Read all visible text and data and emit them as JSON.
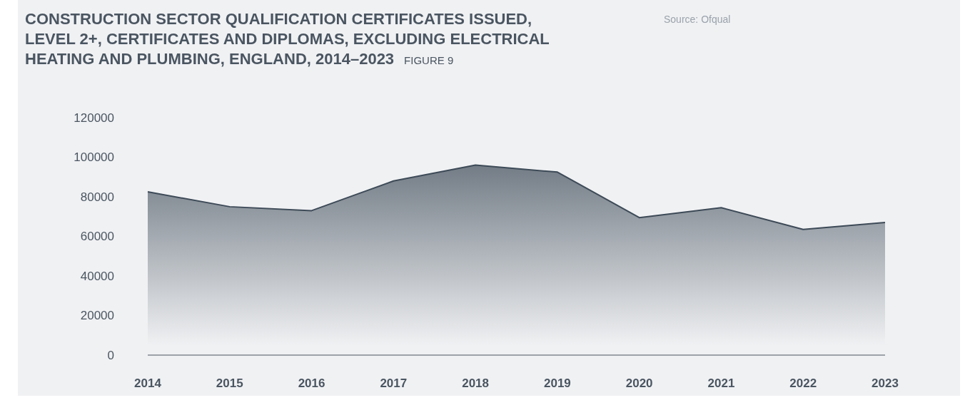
{
  "chart_data": {
    "type": "area",
    "title": "CONSTRUCTION SECTOR QUALIFICATION CERTIFICATES ISSUED, LEVEL 2+, CERTIFICATES AND DIPLOMAS, EXCLUDING ELECTRICAL HEATING AND PLUMBING, ENGLAND, 2014–2023",
    "subtitle": "FIGURE 9",
    "annotations": [
      "Source: Ofqual"
    ],
    "categories": [
      "2014",
      "2015",
      "2016",
      "2017",
      "2018",
      "2019",
      "2020",
      "2021",
      "2022",
      "2023"
    ],
    "values": [
      82500,
      75000,
      73000,
      88000,
      96000,
      92500,
      69500,
      74500,
      63500,
      67000
    ],
    "color": "#3d4a57",
    "ylim": [
      0,
      120000
    ],
    "yticks": [
      0,
      20000,
      40000,
      60000,
      80000,
      100000,
      120000
    ],
    "grid": false
  }
}
